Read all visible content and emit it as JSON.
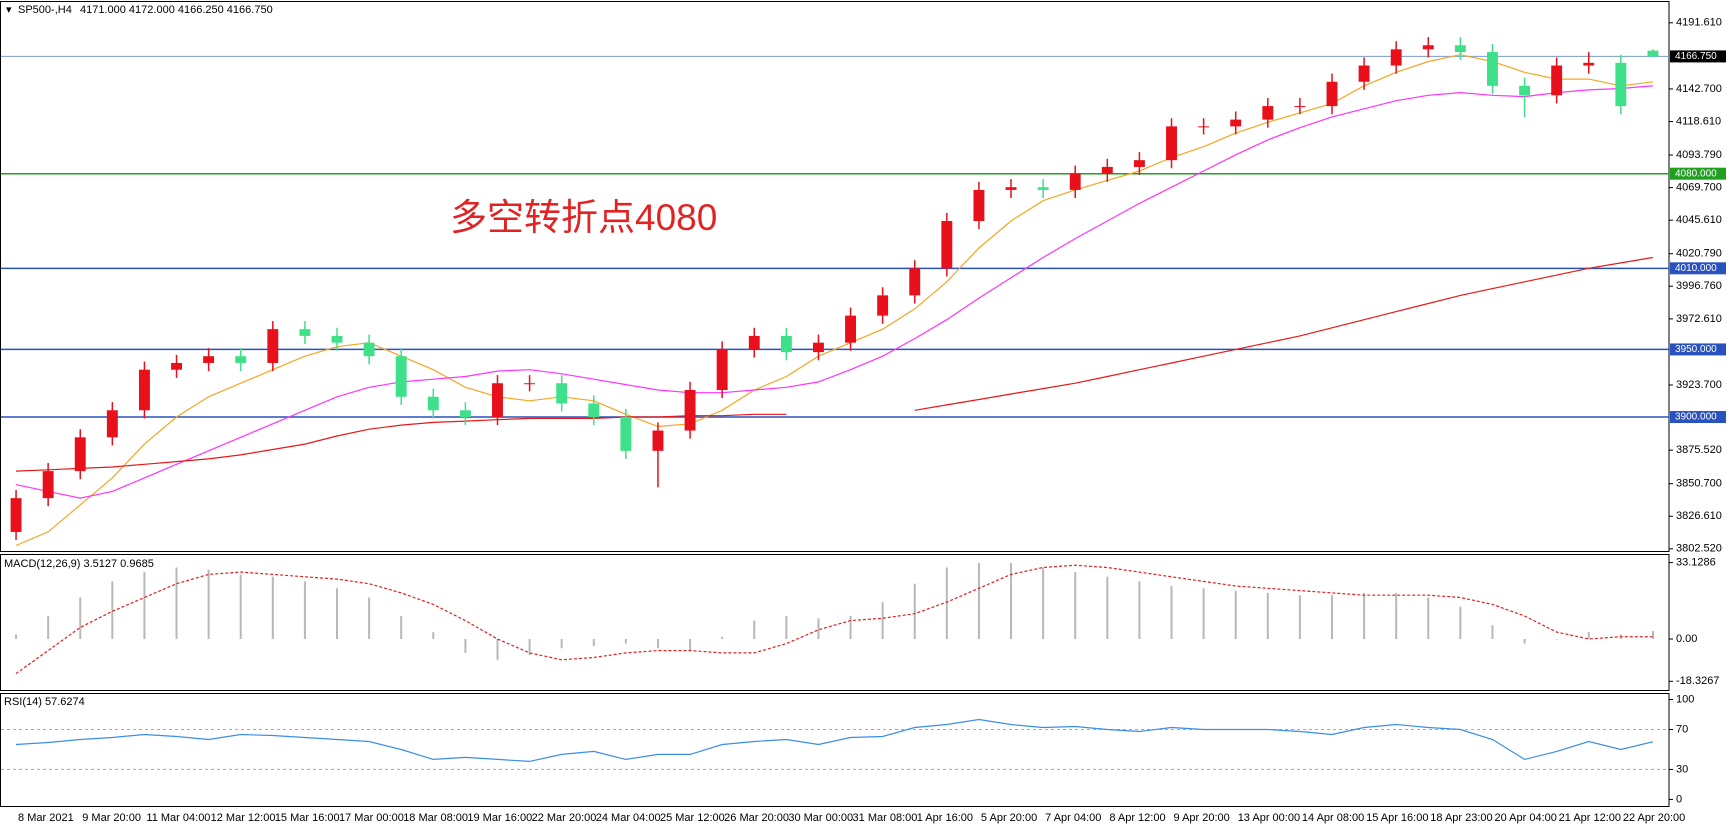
{
  "chart_data": [
    {
      "type": "candlestick",
      "title": "SP500-,H4",
      "subtitle": "4171.000 4172.000 4166.250 4166.750",
      "annotation": "多空转折点4080",
      "categories": [
        "8 Mar 2021",
        null,
        "9 Mar 20:00",
        null,
        "11 Mar 04:00",
        null,
        "12 Mar 12:00",
        null,
        "15 Mar 16:00",
        null,
        "17 Mar 00:00",
        null,
        "18 Mar 08:00",
        null,
        "19 Mar 16:00",
        null,
        "22 Mar 20:00",
        null,
        "24 Mar 04:00",
        null,
        "25 Mar 12:00",
        null,
        "26 Mar 20:00",
        null,
        "30 Mar 00:00",
        null,
        "31 Mar 08:00",
        null,
        "1 Apr 16:00",
        null,
        "5 Apr 20:00",
        null,
        "7 Apr 04:00",
        null,
        "8 Apr 12:00",
        null,
        "9 Apr 20:00",
        null,
        "13 Apr 00:00",
        null,
        "14 Apr 08:00",
        null,
        "15 Apr 16:00",
        null,
        "18 Apr 23:00",
        null,
        "20 Apr 04:00",
        null,
        "21 Apr 12:00",
        null,
        "22 Apr 20:00",
        null
      ],
      "open": [
        3815,
        3840,
        3860,
        3885,
        3905,
        3935,
        3940,
        3945,
        3940,
        3965,
        3960,
        3955,
        3945,
        3915,
        3905,
        3900,
        3925,
        3925,
        3910,
        3900,
        3875,
        3890,
        3920,
        3950,
        3960,
        3948,
        3955,
        3975,
        3990,
        4010,
        4045,
        4068,
        4070,
        4068,
        4080,
        4085,
        4090,
        4115,
        4115,
        4120,
        4130,
        4130,
        4148,
        4160,
        4172,
        4175,
        4170,
        4145,
        4138,
        4160,
        4162,
        4171
      ],
      "high": [
        3846,
        3866,
        3891,
        3911,
        3941,
        3946,
        3951,
        3951,
        3971,
        3971,
        3966,
        3961,
        3951,
        3921,
        3911,
        3931,
        3931,
        3931,
        3916,
        3906,
        3896,
        3926,
        3956,
        3966,
        3966,
        3961,
        3981,
        3996,
        4016,
        4051,
        4074,
        4076,
        4076,
        4086,
        4091,
        4096,
        4121,
        4121,
        4126,
        4136,
        4136,
        4154,
        4166,
        4178,
        4181,
        4181,
        4176,
        4151,
        4166,
        4170,
        4168,
        4172
      ],
      "low": [
        3809,
        3834,
        3854,
        3879,
        3899,
        3929,
        3934,
        3934,
        3934,
        3954,
        3949,
        3939,
        3909,
        3899,
        3894,
        3894,
        3919,
        3904,
        3894,
        3869,
        3848,
        3884,
        3914,
        3944,
        3942,
        3942,
        3949,
        3969,
        3984,
        4004,
        4039,
        4062,
        4062,
        4062,
        4074,
        4079,
        4084,
        4109,
        4109,
        4114,
        4124,
        4124,
        4142,
        4154,
        4166,
        4164,
        4139,
        4122,
        4132,
        4154,
        4124,
        4166.25
      ],
      "close": [
        3840,
        3860,
        3885,
        3905,
        3935,
        3940,
        3945,
        3940,
        3965,
        3960,
        3955,
        3945,
        3915,
        3905,
        3900,
        3925,
        3925,
        3910,
        3900,
        3875,
        3890,
        3920,
        3950,
        3960,
        3948,
        3955,
        3975,
        3990,
        4010,
        4045,
        4068,
        4070,
        4068,
        4080,
        4085,
        4090,
        4115,
        4115,
        4120,
        4130,
        4130,
        4148,
        4160,
        4172,
        4175,
        4170,
        4145,
        4138,
        4160,
        4162,
        4130,
        4166.75
      ],
      "up_color": "#e8101a",
      "down_color": "#3fe08a",
      "series": [
        {
          "color": "#f5a623",
          "values": [
            3805,
            3815,
            3835,
            3855,
            3880,
            3900,
            3915,
            3925,
            3935,
            3945,
            3952,
            3955,
            3945,
            3935,
            3922,
            3915,
            3912,
            3915,
            3912,
            3902,
            3893,
            3895,
            3905,
            3920,
            3930,
            3945,
            3955,
            3965,
            3980,
            4000,
            4025,
            4045,
            4060,
            4068,
            4075,
            4082,
            4092,
            4100,
            4110,
            4118,
            4125,
            4132,
            4145,
            4155,
            4163,
            4168,
            4163,
            4155,
            4150,
            4150,
            4145,
            4148
          ]
        },
        {
          "color": "#ff33ff",
          "values": [
            3850,
            3845,
            3840,
            3845,
            3855,
            3865,
            3875,
            3885,
            3895,
            3905,
            3915,
            3922,
            3926,
            3928,
            3930,
            3934,
            3935,
            3932,
            3928,
            3924,
            3920,
            3918,
            3918,
            3920,
            3922,
            3926,
            3935,
            3945,
            3958,
            3972,
            3988,
            4003,
            4018,
            4032,
            4045,
            4058,
            4070,
            4082,
            4094,
            4105,
            4114,
            4122,
            4128,
            4134,
            4138,
            4140,
            4138,
            4137,
            4140,
            4142,
            4143,
            4145
          ]
        },
        {
          "color": "#e81818",
          "values": [
            3860,
            3861,
            3862,
            3863,
            3865,
            3867,
            3869,
            3872,
            3876,
            3880,
            3886,
            3891,
            3894,
            3896,
            3897,
            3898,
            3899,
            3899,
            3899,
            3900,
            3900,
            3901,
            3901,
            3902,
            3902,
            null,
            null,
            null,
            3905,
            3909,
            3913,
            3917,
            3921,
            3925,
            3930,
            3935,
            3940,
            3945,
            3950,
            3955,
            3960,
            3966,
            3972,
            3978,
            3984,
            3990,
            3995,
            4000,
            4005,
            4010,
            4014,
            4018
          ]
        }
      ],
      "hlines": [
        {
          "value": 4166.75,
          "label": "4166.750",
          "color": "#7a9cc6",
          "label_color": "#000000"
        },
        {
          "value": 4080,
          "label": "4080.000",
          "color": "#1fa01f",
          "label_color": "#1fa01f"
        },
        {
          "value": 4010,
          "label": "4010.000",
          "color": "#2a52be",
          "label_color": "#2a52be"
        },
        {
          "value": 3950,
          "label": "3950.000",
          "color": "#2a52be",
          "label_color": "#2a52be"
        },
        {
          "value": 3900,
          "label": "3900.000",
          "color": "#2a52be",
          "label_color": "#2a52be"
        }
      ],
      "ylim": [
        3800.9,
        4207.0
      ],
      "yticks": [
        {
          "value": 4191.61,
          "label": "4191.610"
        },
        {
          "value": 4142.7,
          "label": "4142.700"
        },
        {
          "value": 4118.61,
          "label": "4118.610"
        },
        {
          "value": 4093.79,
          "label": "4093.790"
        },
        {
          "value": 4069.7,
          "label": "4069.700"
        },
        {
          "value": 4045.61,
          "label": "4045.610"
        },
        {
          "value": 4020.79,
          "label": "4020.790"
        },
        {
          "value": 3996.76,
          "label": "3996.760"
        },
        {
          "value": 3972.61,
          "label": "3972.610"
        },
        {
          "value": 3923.7,
          "label": "3923.700"
        },
        {
          "value": 3875.52,
          "label": "3875.520"
        },
        {
          "value": 3850.7,
          "label": "3850.700"
        },
        {
          "value": 3826.61,
          "label": "3826.610"
        },
        {
          "value": 3802.52,
          "label": "3802.520"
        }
      ]
    },
    {
      "type": "macd",
      "title": "MACD(12,26,9) 3.5127 0.9685",
      "histogram": {
        "color": "#b8b8b8",
        "values": [
          2,
          10,
          18,
          25,
          29,
          31,
          30,
          28,
          27,
          25,
          22,
          18,
          10,
          3,
          -6,
          -9,
          -7,
          -4,
          -3,
          -2,
          -4,
          -5,
          1,
          8,
          10,
          9,
          10,
          16,
          24,
          31,
          33,
          33,
          31,
          29,
          27,
          25,
          23,
          22,
          21,
          20,
          19,
          19,
          20,
          20,
          18,
          14,
          6,
          -2,
          0,
          3,
          2,
          3.5127
        ]
      },
      "signal": {
        "color": "#e02020",
        "values": [
          -15,
          -5,
          5,
          12,
          18,
          24,
          28,
          29,
          28,
          27,
          26,
          24,
          20,
          15,
          8,
          0,
          -6,
          -9,
          -8,
          -6,
          -5,
          -5,
          -6,
          -6,
          -2,
          4,
          8,
          9,
          11,
          16,
          22,
          28,
          31,
          32,
          31,
          29,
          27,
          25,
          23,
          22,
          21,
          20,
          19,
          19,
          19,
          18,
          15,
          10,
          3,
          0,
          1,
          0.9685
        ]
      },
      "ylim": [
        -22.1,
        36.43
      ],
      "yticks": [
        33.1286,
        {
          "value": 0,
          "label": "0.00"
        },
        -18.3267
      ]
    },
    {
      "type": "line",
      "title": "RSI(14) 57.6274",
      "color": "#3a8ee6",
      "values": [
        55,
        57,
        60,
        62,
        65,
        63,
        60,
        65,
        64,
        62,
        60,
        58,
        50,
        40,
        42,
        40,
        38,
        45,
        48,
        40,
        45,
        45,
        55,
        58,
        60,
        55,
        62,
        63,
        72,
        75,
        80,
        75,
        72,
        73,
        70,
        68,
        72,
        70,
        70,
        70,
        68,
        65,
        72,
        75,
        72,
        70,
        60,
        40,
        48,
        58,
        50,
        57.6274
      ],
      "level_lines": [
        70,
        30
      ],
      "ylim": [
        -6.6,
        105.5
      ],
      "yticks": [
        100,
        70,
        30,
        0
      ]
    }
  ]
}
